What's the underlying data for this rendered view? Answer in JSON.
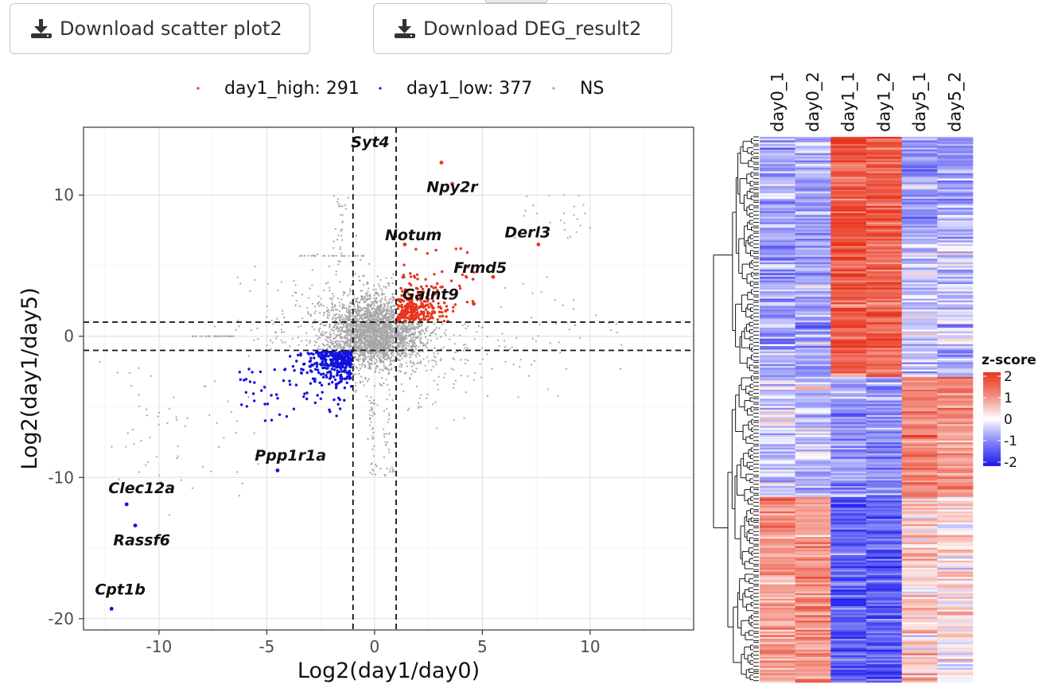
{
  "buttons": {
    "download_scatter": "Download scatter plot2",
    "download_deg": "Download DEG_result2"
  },
  "icons": {
    "download": "download-icon"
  },
  "colors": {
    "high": "#e8341c",
    "low": "#1212e0",
    "ns": "#a6a6a6",
    "heat_high": "#e8341c",
    "heat_mid": "#ffffff",
    "heat_low": "#1a1aee"
  },
  "chart_data": [
    {
      "type": "scatter",
      "xlabel": "Log2(day1/day0)",
      "ylabel": "Log2(day1/day5)",
      "xlim": [
        -13.5,
        14.8
      ],
      "ylim": [
        -20.8,
        14.8
      ],
      "xticks": [
        -10,
        -5,
        0,
        5,
        10
      ],
      "yticks": [
        -20,
        -10,
        0,
        10
      ],
      "xtick_labels": [
        "-10",
        "-5",
        "0",
        "5",
        "10"
      ],
      "ytick_labels": [
        "-20",
        "-10",
        "0",
        "10"
      ],
      "grid": true,
      "thresholds": {
        "x": [
          -1,
          1
        ],
        "y": [
          -1,
          1
        ]
      },
      "legend_position": "top",
      "legend": [
        {
          "label": "day1_high: 291",
          "key": "high"
        },
        {
          "label": "day1_low: 377",
          "key": "low"
        },
        {
          "label": "NS",
          "key": "ns"
        }
      ],
      "series_counts": {
        "day1_high": 291,
        "day1_low": 377
      },
      "labeled_genes": [
        {
          "name": "Syt4",
          "x": 3.1,
          "y": 12.3,
          "group": "high"
        },
        {
          "name": "Npy2r",
          "x": 3.6,
          "y": 10.8,
          "group": "high"
        },
        {
          "name": "Notum",
          "x": 1.4,
          "y": 6.5,
          "group": "high"
        },
        {
          "name": "Derl3",
          "x": 7.6,
          "y": 6.5,
          "group": "high"
        },
        {
          "name": "Frmd5",
          "x": 5.5,
          "y": 4.2,
          "group": "high"
        },
        {
          "name": "Galnt9",
          "x": 4.6,
          "y": 2.3,
          "group": "high"
        },
        {
          "name": "Ppp1r1a",
          "x": -4.5,
          "y": -9.5,
          "group": "low"
        },
        {
          "name": "Clec12a",
          "x": -11.5,
          "y": -11.9,
          "group": "low"
        },
        {
          "name": "Rassf6",
          "x": -11.1,
          "y": -13.4,
          "group": "low"
        },
        {
          "name": "Cpt1b",
          "x": -12.2,
          "y": -19.3,
          "group": "low"
        }
      ]
    },
    {
      "type": "heatmap",
      "columns": [
        "day0_1",
        "day0_2",
        "day1_1",
        "day1_2",
        "day5_1",
        "day5_2"
      ],
      "legend_title": "z-score",
      "legend_ticks": [
        2,
        1,
        0,
        -1,
        -2
      ],
      "legend_tick_labels": [
        "2",
        "1",
        "0",
        "-1",
        "-2"
      ],
      "clusters": [
        {
          "rows": 0.19,
          "mean": [
            -0.55,
            -0.6,
            1.6,
            1.5,
            -0.7,
            -0.75
          ]
        },
        {
          "rows": 0.25,
          "mean": [
            -0.75,
            -0.7,
            1.55,
            1.45,
            -0.35,
            -0.4
          ]
        },
        {
          "rows": 0.22,
          "mean": [
            -0.35,
            -0.4,
            -0.8,
            -0.8,
            1.2,
            1.0
          ]
        },
        {
          "rows": 0.34,
          "mean": [
            0.9,
            0.9,
            -1.3,
            -1.35,
            0.35,
            0.2
          ]
        }
      ]
    }
  ]
}
